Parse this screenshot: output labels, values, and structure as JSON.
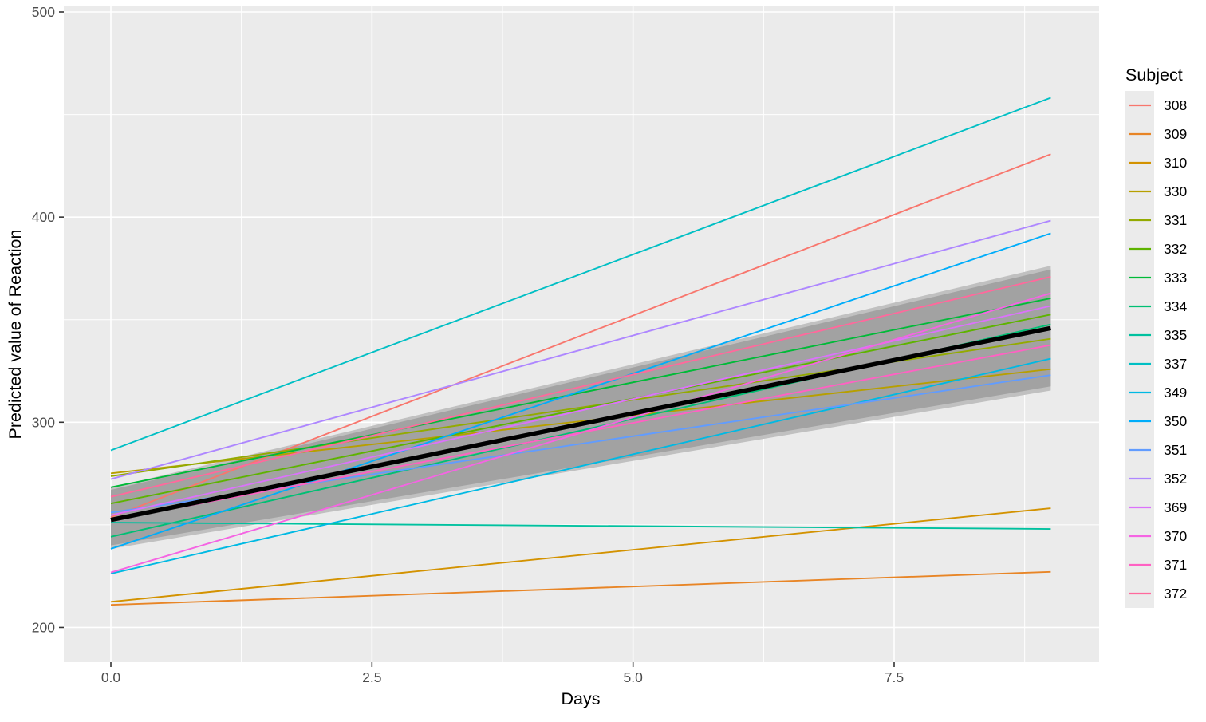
{
  "figure": {
    "background": "#ffffff",
    "panel_background": "#ebebeb",
    "grid_color": "#ffffff",
    "tick_mark_color": "#333333",
    "tick_label_color": "#4d4d4d",
    "axis_title_color": "#000000",
    "legend_key_background": "#ebebeb"
  },
  "chart_data": {
    "type": "line",
    "title": "",
    "xlabel": "Days",
    "ylabel": "Predicted value of Reaction",
    "legend_title": "Subject",
    "legend_position": "right",
    "grid": true,
    "x_domain": [
      0,
      9
    ],
    "xlim": [
      -0.45,
      9.45
    ],
    "ylim": [
      183,
      503
    ],
    "x_ticks": [
      {
        "value": 0,
        "label": "0.0"
      },
      {
        "value": 2.5,
        "label": "2.5"
      },
      {
        "value": 5,
        "label": "5.0"
      },
      {
        "value": 7.5,
        "label": "7.5"
      }
    ],
    "x_minor_ticks": [
      1.25,
      3.75,
      6.25,
      8.75
    ],
    "y_ticks": [
      {
        "value": 200,
        "label": "200"
      },
      {
        "value": 300,
        "label": "300"
      },
      {
        "value": 400,
        "label": "400"
      },
      {
        "value": 500,
        "label": "500"
      }
    ],
    "y_minor_ticks": [
      250,
      350,
      450
    ],
    "series_note": "Per-subject linear predictions; x = [0, 9] days, y = [value at day 0, value at day 9]",
    "series": [
      {
        "name": "308",
        "color": "#F8766D",
        "x": [
          0,
          9
        ],
        "y": [
          253.7,
          430.7
        ]
      },
      {
        "name": "309",
        "color": "#E88526",
        "x": [
          0,
          9
        ],
        "y": [
          211.0,
          227.1
        ]
      },
      {
        "name": "310",
        "color": "#D39200",
        "x": [
          0,
          9
        ],
        "y": [
          212.5,
          258.1
        ]
      },
      {
        "name": "330",
        "color": "#B79F00",
        "x": [
          0,
          9
        ],
        "y": [
          275.1,
          325.9
        ]
      },
      {
        "name": "331",
        "color": "#93AA00",
        "x": [
          0,
          9
        ],
        "y": [
          273.7,
          340.7
        ]
      },
      {
        "name": "332",
        "color": "#5EB300",
        "x": [
          0,
          9
        ],
        "y": [
          260.4,
          352.5
        ]
      },
      {
        "name": "333",
        "color": "#00BA38",
        "x": [
          0,
          9
        ],
        "y": [
          268.3,
          360.4
        ]
      },
      {
        "name": "334",
        "color": "#00BF74",
        "x": [
          0,
          9
        ],
        "y": [
          244.2,
          347.7
        ]
      },
      {
        "name": "335",
        "color": "#00C19F",
        "x": [
          0,
          9
        ],
        "y": [
          251.1,
          248.0
        ]
      },
      {
        "name": "337",
        "color": "#00BFC4",
        "x": [
          0,
          9
        ],
        "y": [
          286.3,
          458.2
        ]
      },
      {
        "name": "349",
        "color": "#00B9E3",
        "x": [
          0,
          9
        ],
        "y": [
          226.2,
          331.0
        ]
      },
      {
        "name": "350",
        "color": "#00ADFA",
        "x": [
          0,
          9
        ],
        "y": [
          238.3,
          392.1
        ]
      },
      {
        "name": "351",
        "color": "#619CFF",
        "x": [
          0,
          9
        ],
        "y": [
          256.0,
          323.0
        ]
      },
      {
        "name": "352",
        "color": "#AE87FF",
        "x": [
          0,
          9
        ],
        "y": [
          272.3,
          398.3
        ]
      },
      {
        "name": "369",
        "color": "#DB72FB",
        "x": [
          0,
          9
        ],
        "y": [
          254.7,
          356.7
        ]
      },
      {
        "name": "370",
        "color": "#F564E3",
        "x": [
          0,
          9
        ],
        "y": [
          226.8,
          362.9
        ]
      },
      {
        "name": "371",
        "color": "#FF61C3",
        "x": [
          0,
          9
        ],
        "y": [
          252.3,
          337.6
        ]
      },
      {
        "name": "372",
        "color": "#FF699C",
        "x": [
          0,
          9
        ],
        "y": [
          263.7,
          370.9
        ]
      }
    ],
    "fixed_effect_line": {
      "name": "overall-fixed-effect",
      "color": "#000000",
      "x": [
        0,
        9
      ],
      "y": [
        252.4,
        345.9
      ],
      "stroke_width": 5.5
    },
    "confidence_ribbon": {
      "fill": "#a2a2a2",
      "edge_fill": "#c0c0c0",
      "x": [
        0,
        9
      ],
      "y_lower": [
        240.0,
        317.5
      ],
      "y_upper": [
        267.0,
        374.5
      ],
      "edge_y_lower": [
        238.3,
        315.5
      ],
      "edge_y_upper": [
        268.2,
        376.3
      ]
    }
  }
}
